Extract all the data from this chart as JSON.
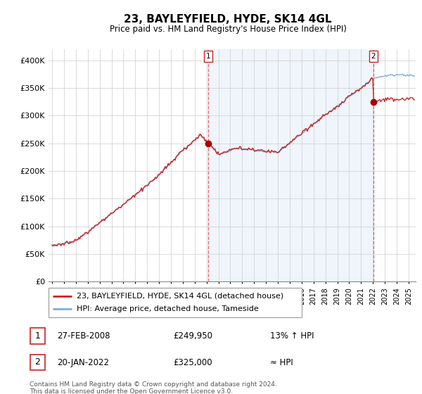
{
  "title": "23, BAYLEYFIELD, HYDE, SK14 4GL",
  "subtitle": "Price paid vs. HM Land Registry's House Price Index (HPI)",
  "legend_line1": "23, BAYLEYFIELD, HYDE, SK14 4GL (detached house)",
  "legend_line2": "HPI: Average price, detached house, Tameside",
  "table_rows": [
    {
      "num": "1",
      "date": "27-FEB-2008",
      "price": "£249,950",
      "change": "13% ↑ HPI"
    },
    {
      "num": "2",
      "date": "20-JAN-2022",
      "price": "£325,000",
      "change": "≈ HPI"
    }
  ],
  "footnote": "Contains HM Land Registry data © Crown copyright and database right 2024.\nThis data is licensed under the Open Government Licence v3.0.",
  "hpi_color": "#7ab0d4",
  "hpi_fill_color": "#ddeeff",
  "price_color": "#cc2222",
  "marker_color": "#aa0000",
  "ylim": [
    0,
    420000
  ],
  "yticks": [
    0,
    50000,
    100000,
    150000,
    200000,
    250000,
    300000,
    350000,
    400000
  ],
  "ytick_labels": [
    "£0",
    "£50K",
    "£100K",
    "£150K",
    "£200K",
    "£250K",
    "£300K",
    "£350K",
    "£400K"
  ],
  "sale1_x": 2008.15,
  "sale1_y": 249950,
  "sale2_x": 2022.05,
  "sale2_y": 325000,
  "xmin": 1995,
  "xmax": 2025.5,
  "grid_color": "#cccccc",
  "bg_color": "#f0f4f8",
  "chart_bg": "#f5f8fc"
}
